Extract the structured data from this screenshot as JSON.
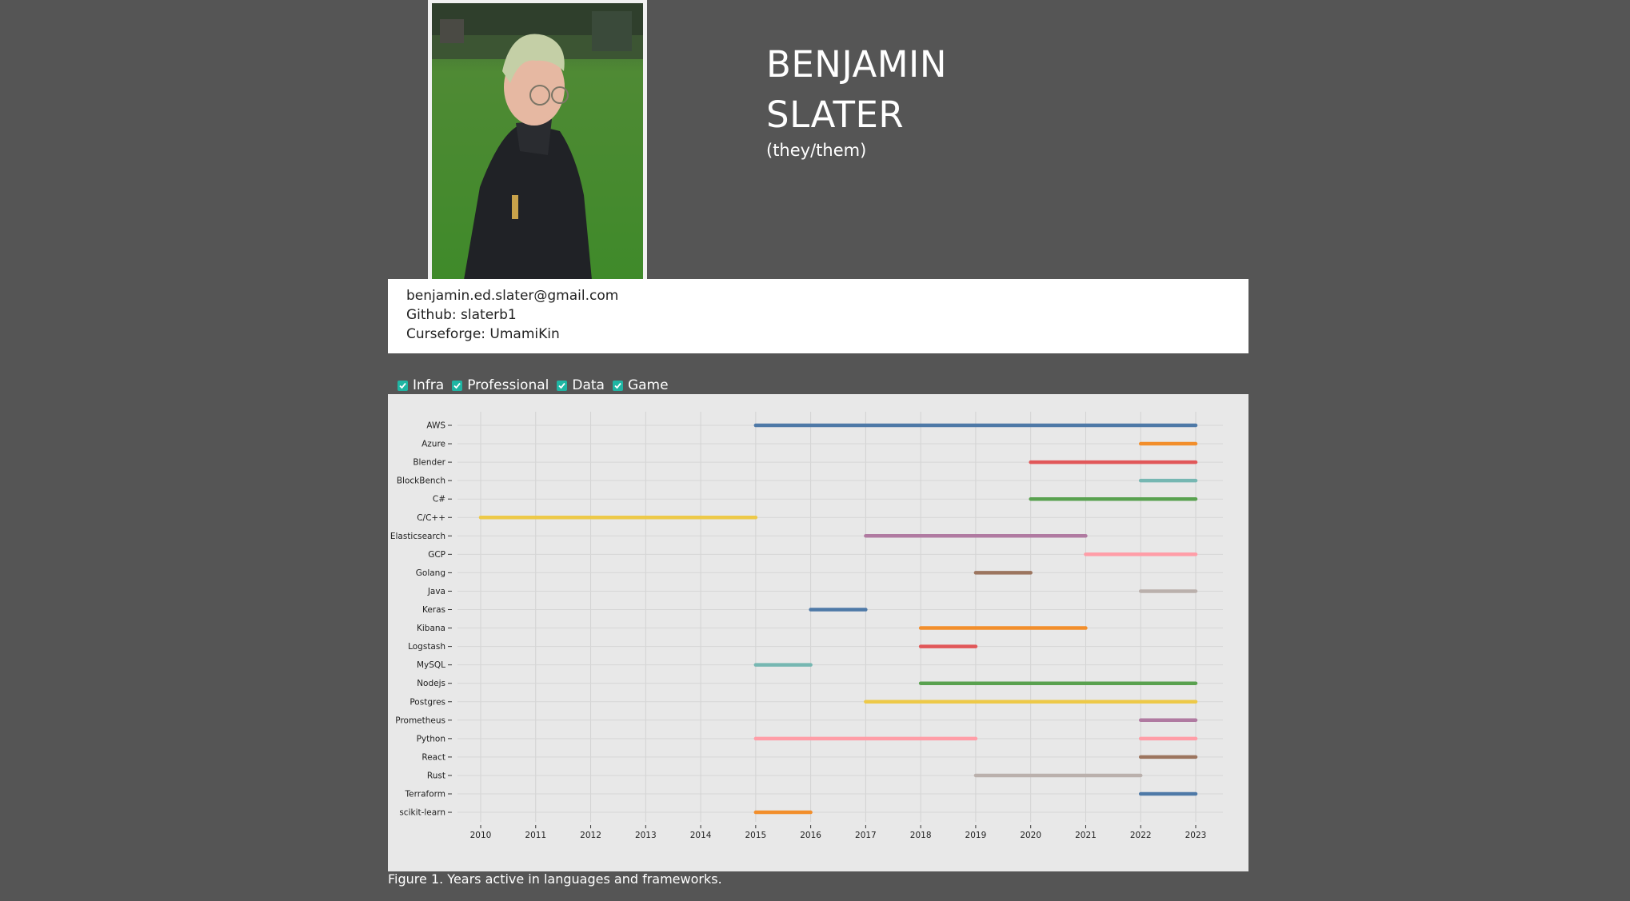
{
  "profile": {
    "first_name": "BENJAMIN",
    "last_name": "SLATER",
    "pronouns": "(they/them)"
  },
  "contact": {
    "email": "benjamin.ed.slater@gmail.com",
    "github": "Github: slaterb1",
    "curseforge": "Curseforge: UmamiKin"
  },
  "filters": [
    {
      "label": "Infra",
      "checked": true
    },
    {
      "label": "Professional",
      "checked": true
    },
    {
      "label": "Data",
      "checked": true
    },
    {
      "label": "Game",
      "checked": true
    }
  ],
  "caption": "Figure 1. Years active in languages and frameworks.",
  "chart_data": {
    "type": "timeline",
    "xlim": [
      2010,
      2023
    ],
    "x_ticks": [
      "2010",
      "2011",
      "2012",
      "2013",
      "2014",
      "2015",
      "2016",
      "2017",
      "2018",
      "2019",
      "2020",
      "2021",
      "2022",
      "2023"
    ],
    "grid": true,
    "rows": [
      {
        "label": "AWS",
        "segments": [
          [
            2015,
            2023
          ]
        ],
        "color": "#4e79a7"
      },
      {
        "label": "Azure",
        "segments": [
          [
            2022,
            2023
          ]
        ],
        "color": "#f28e2b"
      },
      {
        "label": "Blender",
        "segments": [
          [
            2020,
            2023
          ]
        ],
        "color": "#e15759"
      },
      {
        "label": "BlockBench",
        "segments": [
          [
            2022,
            2023
          ]
        ],
        "color": "#76b7b2"
      },
      {
        "label": "C#",
        "segments": [
          [
            2020,
            2023
          ]
        ],
        "color": "#59a14f"
      },
      {
        "label": "C/C++",
        "segments": [
          [
            2010,
            2015
          ]
        ],
        "color": "#edc948"
      },
      {
        "label": "Elasticsearch",
        "segments": [
          [
            2017,
            2021
          ]
        ],
        "color": "#b07aa1"
      },
      {
        "label": "GCP",
        "segments": [
          [
            2021,
            2023
          ]
        ],
        "color": "#ff9da7"
      },
      {
        "label": "Golang",
        "segments": [
          [
            2019,
            2020
          ]
        ],
        "color": "#9c755f"
      },
      {
        "label": "Java",
        "segments": [
          [
            2022,
            2023
          ]
        ],
        "color": "#bab0ac"
      },
      {
        "label": "Keras",
        "segments": [
          [
            2016,
            2017
          ]
        ],
        "color": "#4e79a7"
      },
      {
        "label": "Kibana",
        "segments": [
          [
            2018,
            2021
          ]
        ],
        "color": "#f28e2b"
      },
      {
        "label": "Logstash",
        "segments": [
          [
            2018,
            2019
          ]
        ],
        "color": "#e15759"
      },
      {
        "label": "MySQL",
        "segments": [
          [
            2015,
            2016
          ]
        ],
        "color": "#76b7b2"
      },
      {
        "label": "Nodejs",
        "segments": [
          [
            2018,
            2023
          ]
        ],
        "color": "#59a14f"
      },
      {
        "label": "Postgres",
        "segments": [
          [
            2017,
            2023
          ]
        ],
        "color": "#edc948"
      },
      {
        "label": "Prometheus",
        "segments": [
          [
            2022,
            2023
          ]
        ],
        "color": "#b07aa1"
      },
      {
        "label": "Python",
        "segments": [
          [
            2015,
            2019
          ],
          [
            2022,
            2023
          ]
        ],
        "color": "#ff9da7"
      },
      {
        "label": "React",
        "segments": [
          [
            2022,
            2023
          ]
        ],
        "color": "#9c755f"
      },
      {
        "label": "Rust",
        "segments": [
          [
            2019,
            2022
          ]
        ],
        "color": "#bab0ac"
      },
      {
        "label": "Terraform",
        "segments": [
          [
            2022,
            2023
          ]
        ],
        "color": "#4e79a7"
      },
      {
        "label": "scikit-learn",
        "segments": [
          [
            2015,
            2016
          ]
        ],
        "color": "#f28e2b"
      }
    ]
  }
}
